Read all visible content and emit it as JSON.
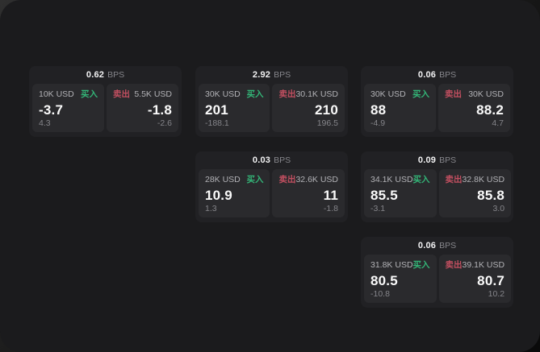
{
  "labels": {
    "bps_unit": "BPS",
    "buy": "买入",
    "sell": "卖出"
  },
  "colors": {
    "buy": "#33b577",
    "sell": "#c24f60",
    "card_bg": "#212124",
    "panel_bg": "#2a2a2d",
    "window_bg": "#1b1b1d"
  },
  "cards": [
    {
      "bps": "0.62",
      "buy": {
        "amount": "10K USD",
        "price": "-3.7",
        "delta": "4.3"
      },
      "sell": {
        "amount": "5.5K USD",
        "price": "-1.8",
        "delta": "-2.6"
      }
    },
    {
      "bps": "2.92",
      "buy": {
        "amount": "30K USD",
        "price": "201",
        "delta": "-188.1"
      },
      "sell": {
        "amount": "30.1K USD",
        "price": "210",
        "delta": "196.5"
      }
    },
    {
      "bps": "0.06",
      "buy": {
        "amount": "30K USD",
        "price": "88",
        "delta": "-4.9"
      },
      "sell": {
        "amount": "30K USD",
        "price": "88.2",
        "delta": "4.7"
      }
    },
    {
      "bps": "0.03",
      "buy": {
        "amount": "28K USD",
        "price": "10.9",
        "delta": "1.3"
      },
      "sell": {
        "amount": "32.6K USD",
        "price": "11",
        "delta": "-1.8"
      }
    },
    {
      "bps": "0.09",
      "buy": {
        "amount": "34.1K USD",
        "price": "85.5",
        "delta": "-3.1"
      },
      "sell": {
        "amount": "32.8K USD",
        "price": "85.8",
        "delta": "3.0"
      }
    },
    {
      "bps": "0.06",
      "buy": {
        "amount": "31.8K USD",
        "price": "80.5",
        "delta": "-10.8"
      },
      "sell": {
        "amount": "39.1K USD",
        "price": "80.7",
        "delta": "10.2"
      }
    }
  ]
}
